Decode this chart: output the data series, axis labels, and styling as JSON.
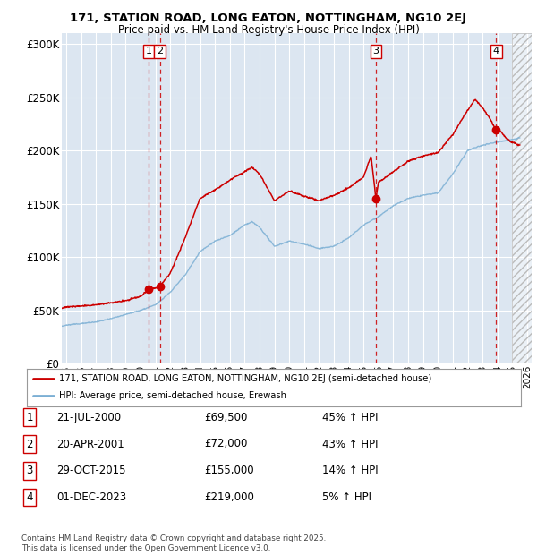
{
  "title_line1": "171, STATION ROAD, LONG EATON, NOTTINGHAM, NG10 2EJ",
  "title_line2": "Price paid vs. HM Land Registry's House Price Index (HPI)",
  "ylim": [
    0,
    310000
  ],
  "xlim_start": 1994.7,
  "xlim_end": 2026.3,
  "yticks": [
    0,
    50000,
    100000,
    150000,
    200000,
    250000,
    300000
  ],
  "ytick_labels": [
    "£0",
    "£50K",
    "£100K",
    "£150K",
    "£200K",
    "£250K",
    "£300K"
  ],
  "xticks": [
    1995,
    1996,
    1997,
    1998,
    1999,
    2000,
    2001,
    2002,
    2003,
    2004,
    2005,
    2006,
    2007,
    2008,
    2009,
    2010,
    2011,
    2012,
    2013,
    2014,
    2015,
    2016,
    2017,
    2018,
    2019,
    2020,
    2021,
    2022,
    2023,
    2024,
    2025,
    2026
  ],
  "background_color": "#dce6f1",
  "grid_color": "#ffffff",
  "red_line_color": "#cc0000",
  "blue_line_color": "#7bafd4",
  "dashed_vline_color": "#cc0000",
  "sales": [
    {
      "date": 2000.55,
      "price": 69500,
      "label": "1"
    },
    {
      "date": 2001.3,
      "price": 72000,
      "label": "2"
    },
    {
      "date": 2015.83,
      "price": 155000,
      "label": "3"
    },
    {
      "date": 2023.92,
      "price": 219000,
      "label": "4"
    }
  ],
  "legend_entries": [
    "171, STATION ROAD, LONG EATON, NOTTINGHAM, NG10 2EJ (semi-detached house)",
    "HPI: Average price, semi-detached house, Erewash"
  ],
  "table_rows": [
    {
      "num": "1",
      "date": "21-JUL-2000",
      "price": "£69,500",
      "pct": "45% ↑ HPI"
    },
    {
      "num": "2",
      "date": "20-APR-2001",
      "price": "£72,000",
      "pct": "43% ↑ HPI"
    },
    {
      "num": "3",
      "date": "29-OCT-2015",
      "price": "£155,000",
      "pct": "14% ↑ HPI"
    },
    {
      "num": "4",
      "date": "01-DEC-2023",
      "price": "£219,000",
      "pct": "5% ↑ HPI"
    }
  ],
  "footer": "Contains HM Land Registry data © Crown copyright and database right 2025.\nThis data is licensed under the Open Government Licence v3.0.",
  "future_start": 2025.0,
  "hpi_base": [
    [
      1994.7,
      35000
    ],
    [
      1995.0,
      36000
    ],
    [
      1996.0,
      37500
    ],
    [
      1997.0,
      39000
    ],
    [
      1998.0,
      42000
    ],
    [
      1999.0,
      46000
    ],
    [
      2000.0,
      50000
    ],
    [
      2001.0,
      55000
    ],
    [
      2002.0,
      67000
    ],
    [
      2003.0,
      83000
    ],
    [
      2004.0,
      105000
    ],
    [
      2005.0,
      115000
    ],
    [
      2006.0,
      120000
    ],
    [
      2007.0,
      130000
    ],
    [
      2007.5,
      133000
    ],
    [
      2008.0,
      128000
    ],
    [
      2009.0,
      110000
    ],
    [
      2010.0,
      115000
    ],
    [
      2011.0,
      112000
    ],
    [
      2012.0,
      108000
    ],
    [
      2013.0,
      110000
    ],
    [
      2014.0,
      118000
    ],
    [
      2015.0,
      130000
    ],
    [
      2016.0,
      138000
    ],
    [
      2017.0,
      148000
    ],
    [
      2018.0,
      155000
    ],
    [
      2019.0,
      158000
    ],
    [
      2020.0,
      160000
    ],
    [
      2021.0,
      178000
    ],
    [
      2022.0,
      200000
    ],
    [
      2023.0,
      205000
    ],
    [
      2024.0,
      208000
    ],
    [
      2024.9,
      210000
    ],
    [
      2025.5,
      212000
    ]
  ],
  "red_base": [
    [
      1994.7,
      52000
    ],
    [
      1995.0,
      53000
    ],
    [
      1996.0,
      54000
    ],
    [
      1997.0,
      55000
    ],
    [
      1998.0,
      57000
    ],
    [
      1999.0,
      59000
    ],
    [
      2000.0,
      63000
    ],
    [
      2000.55,
      69500
    ],
    [
      2001.3,
      72000
    ],
    [
      2002.0,
      85000
    ],
    [
      2003.0,
      118000
    ],
    [
      2004.0,
      155000
    ],
    [
      2005.0,
      163000
    ],
    [
      2006.0,
      172000
    ],
    [
      2007.0,
      180000
    ],
    [
      2007.5,
      184000
    ],
    [
      2008.0,
      178000
    ],
    [
      2009.0,
      153000
    ],
    [
      2010.0,
      162000
    ],
    [
      2011.0,
      157000
    ],
    [
      2012.0,
      153000
    ],
    [
      2013.0,
      158000
    ],
    [
      2014.0,
      165000
    ],
    [
      2015.0,
      175000
    ],
    [
      2015.5,
      195000
    ],
    [
      2015.83,
      155000
    ],
    [
      2016.0,
      170000
    ],
    [
      2017.0,
      180000
    ],
    [
      2018.0,
      190000
    ],
    [
      2019.0,
      195000
    ],
    [
      2020.0,
      198000
    ],
    [
      2021.0,
      215000
    ],
    [
      2022.0,
      238000
    ],
    [
      2022.5,
      248000
    ],
    [
      2023.0,
      240000
    ],
    [
      2023.5,
      230000
    ],
    [
      2023.92,
      219000
    ],
    [
      2024.0,
      222000
    ],
    [
      2024.5,
      213000
    ],
    [
      2024.9,
      208000
    ],
    [
      2025.5,
      205000
    ]
  ]
}
